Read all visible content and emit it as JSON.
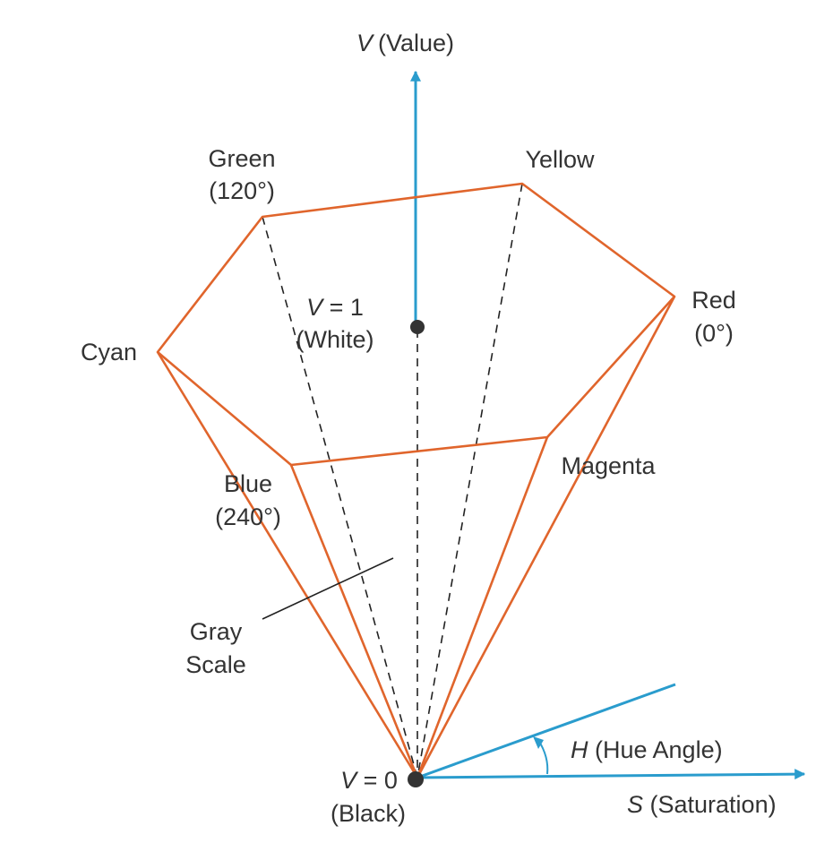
{
  "colors": {
    "cone_edge": "#e0652c",
    "axis": "#2a9ccd",
    "dashed": "#222222",
    "label": "#333333",
    "point": "#333333"
  },
  "labels": {
    "v_axis_var": "V",
    "v_axis_text": "(Value)",
    "green_name": "Green",
    "green_angle": "(120°)",
    "yellow": "Yellow",
    "red_name": "Red",
    "red_angle": "(0°)",
    "cyan": "Cyan",
    "white_var": "V",
    "white_eq": " = 1",
    "white_text": "(White)",
    "magenta": "Magenta",
    "blue_name": "Blue",
    "blue_angle": "(240°)",
    "gray_1": "Gray",
    "gray_2": "Scale",
    "black_var": "V",
    "black_eq": " = 0",
    "black_text": "(Black)",
    "hue_var": "H",
    "hue_text": " (Hue Angle)",
    "sat_var": "S",
    "sat_text": " (Saturation)"
  }
}
